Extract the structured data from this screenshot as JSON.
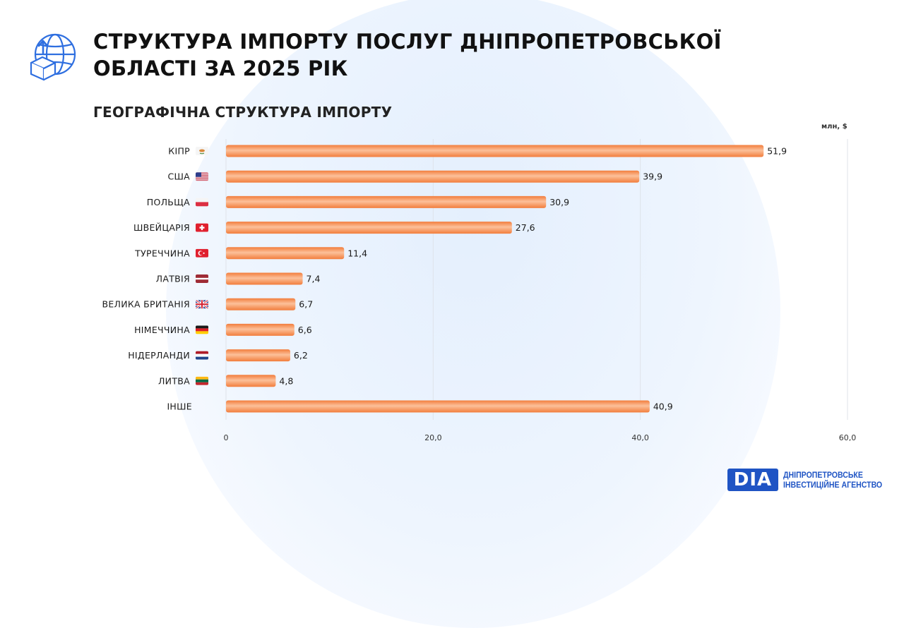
{
  "title": "СТРУКТУРА ІМПОРТУ ПОСЛУГ ДНІПРОПЕТРОВСЬКОЇ ОБЛАСТІ ЗА 2025 РІК",
  "header_icon": "globe-box-upload-icon",
  "brand": {
    "mark": "DIA",
    "line1": "ДНІПРОПЕТРОВСЬКЕ",
    "line2": "ІНВЕСТИЦІЙНЕ АГЕНСТВО"
  },
  "colors": {
    "bar": "#f58a4c",
    "bar_highlight": "#fcc09a",
    "brand": "#1f54c4",
    "background_accent": "#e8f1fd"
  },
  "chart_data": {
    "type": "bar",
    "orientation": "horizontal",
    "subtitle": "ГЕОГРАФІЧНА СТРУКТУРА ІМПОРТУ",
    "unit": "млн, $",
    "categories": [
      "КІПР",
      "США",
      "ПОЛЬЩА",
      "ШВЕЙЦАРІЯ",
      "ТУРЕЧЧИНА",
      "ЛАТВІЯ",
      "ВЕЛИКА БРИТАНІЯ",
      "НІМЕЧЧИНА",
      "НІДЕРЛАНДИ",
      "ЛИТВА",
      "ІНШЕ"
    ],
    "flags": [
      "cyprus-flag",
      "usa-flag",
      "poland-flag",
      "switzerland-flag",
      "turkey-flag",
      "latvia-flag",
      "uk-flag",
      "germany-flag",
      "netherlands-flag",
      "lithuania-flag",
      ""
    ],
    "values": [
      51.9,
      39.9,
      30.9,
      27.6,
      11.4,
      7.4,
      6.7,
      6.6,
      6.2,
      4.8,
      40.9
    ],
    "value_labels": [
      "51,9",
      "39,9",
      "30,9",
      "27,6",
      "11,4",
      "7,4",
      "6,7",
      "6,6",
      "6,2",
      "4,8",
      "40,9"
    ],
    "xlim": [
      0,
      60
    ],
    "ticks": [
      0,
      20,
      40,
      60
    ],
    "tick_labels": [
      "0",
      "20,0",
      "40,0",
      "60,0"
    ],
    "grid": true,
    "legend": "none"
  }
}
